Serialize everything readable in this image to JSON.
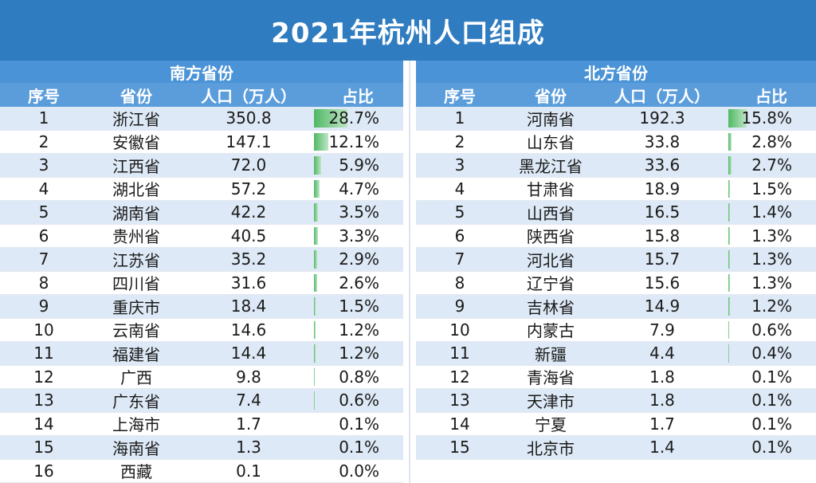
{
  "title": "2021年杭州人口组成",
  "colors": {
    "header_blue": "#2f7cc1",
    "sub_blue": "#5b9ddb",
    "bar_green": "#4fb864",
    "row_alt": "#dde9f6"
  },
  "south": {
    "group_title": "南方省份",
    "headers": {
      "idx": "序号",
      "province": "省份",
      "population": "人口（万人）",
      "share": "占比"
    },
    "rows": [
      {
        "idx": "1",
        "province": "浙江省",
        "population": "350.8",
        "share": "28.7%",
        "share_value": 28.7
      },
      {
        "idx": "2",
        "province": "安徽省",
        "population": "147.1",
        "share": "12.1%",
        "share_value": 12.1
      },
      {
        "idx": "3",
        "province": "江西省",
        "population": "72.0",
        "share": "5.9%",
        "share_value": 5.9
      },
      {
        "idx": "4",
        "province": "湖北省",
        "population": "57.2",
        "share": "4.7%",
        "share_value": 4.7
      },
      {
        "idx": "5",
        "province": "湖南省",
        "population": "42.2",
        "share": "3.5%",
        "share_value": 3.5
      },
      {
        "idx": "6",
        "province": "贵州省",
        "population": "40.5",
        "share": "3.3%",
        "share_value": 3.3
      },
      {
        "idx": "7",
        "province": "江苏省",
        "population": "35.2",
        "share": "2.9%",
        "share_value": 2.9
      },
      {
        "idx": "8",
        "province": "四川省",
        "population": "31.6",
        "share": "2.6%",
        "share_value": 2.6
      },
      {
        "idx": "9",
        "province": "重庆市",
        "population": "18.4",
        "share": "1.5%",
        "share_value": 1.5
      },
      {
        "idx": "10",
        "province": "云南省",
        "population": "14.6",
        "share": "1.2%",
        "share_value": 1.2
      },
      {
        "idx": "11",
        "province": "福建省",
        "population": "14.4",
        "share": "1.2%",
        "share_value": 1.2
      },
      {
        "idx": "12",
        "province": "广西",
        "population": "9.8",
        "share": "0.8%",
        "share_value": 0.8
      },
      {
        "idx": "13",
        "province": "广东省",
        "population": "7.4",
        "share": "0.6%",
        "share_value": 0.6
      },
      {
        "idx": "14",
        "province": "上海市",
        "population": "1.7",
        "share": "0.1%",
        "share_value": 0.1
      },
      {
        "idx": "15",
        "province": "海南省",
        "population": "1.3",
        "share": "0.1%",
        "share_value": 0.1
      },
      {
        "idx": "16",
        "province": "西藏",
        "population": "0.1",
        "share": "0.0%",
        "share_value": 0.0
      }
    ]
  },
  "north": {
    "group_title": "北方省份",
    "headers": {
      "idx": "序号",
      "province": "省份",
      "population": "人口（万人）",
      "share": "占比"
    },
    "rows": [
      {
        "idx": "1",
        "province": "河南省",
        "population": "192.3",
        "share": "15.8%",
        "share_value": 15.8
      },
      {
        "idx": "2",
        "province": "山东省",
        "population": "33.8",
        "share": "2.8%",
        "share_value": 2.8
      },
      {
        "idx": "3",
        "province": "黑龙江省",
        "population": "33.6",
        "share": "2.7%",
        "share_value": 2.7
      },
      {
        "idx": "4",
        "province": "甘肃省",
        "population": "18.9",
        "share": "1.5%",
        "share_value": 1.5
      },
      {
        "idx": "5",
        "province": "山西省",
        "population": "16.5",
        "share": "1.4%",
        "share_value": 1.4
      },
      {
        "idx": "6",
        "province": "陕西省",
        "population": "15.8",
        "share": "1.3%",
        "share_value": 1.3
      },
      {
        "idx": "7",
        "province": "河北省",
        "population": "15.7",
        "share": "1.3%",
        "share_value": 1.3
      },
      {
        "idx": "8",
        "province": "辽宁省",
        "population": "15.6",
        "share": "1.3%",
        "share_value": 1.3
      },
      {
        "idx": "9",
        "province": "吉林省",
        "population": "14.9",
        "share": "1.2%",
        "share_value": 1.2
      },
      {
        "idx": "10",
        "province": "内蒙古",
        "population": "7.9",
        "share": "0.6%",
        "share_value": 0.6
      },
      {
        "idx": "11",
        "province": "新疆",
        "population": "4.4",
        "share": "0.4%",
        "share_value": 0.4
      },
      {
        "idx": "12",
        "province": "青海省",
        "population": "1.8",
        "share": "0.1%",
        "share_value": 0.1
      },
      {
        "idx": "13",
        "province": "天津市",
        "population": "1.8",
        "share": "0.1%",
        "share_value": 0.1
      },
      {
        "idx": "14",
        "province": "宁夏",
        "population": "1.7",
        "share": "0.1%",
        "share_value": 0.1
      },
      {
        "idx": "15",
        "province": "北京市",
        "population": "1.4",
        "share": "0.1%",
        "share_value": 0.1
      }
    ]
  }
}
